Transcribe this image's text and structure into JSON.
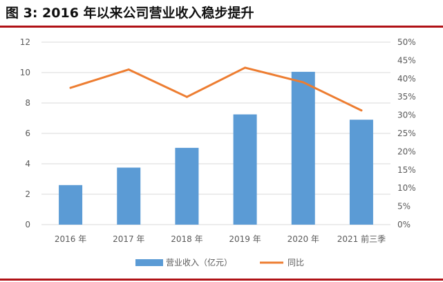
{
  "figure": {
    "title": "图 3: 2016 年以来公司营业收入稳步提升"
  },
  "colors": {
    "accent_rule": "#b01116",
    "bar": "#5b9bd5",
    "line": "#ed7d31",
    "grid": "#d9d9d9",
    "tick_text": "#595959"
  },
  "chart_data": {
    "type": "bar",
    "categories": [
      "2016 年",
      "2017 年",
      "2018 年",
      "2019 年",
      "2020 年",
      "2021 前三季"
    ],
    "series": [
      {
        "name": "营业收入（亿元）",
        "type": "bar",
        "axis": "left",
        "values": [
          2.6,
          3.75,
          5.05,
          7.25,
          10.05,
          6.9
        ]
      },
      {
        "name": "同比",
        "type": "line",
        "axis": "right",
        "unit": "%",
        "values": [
          37.5,
          42.5,
          35.0,
          43.0,
          39.0,
          31.3
        ]
      }
    ],
    "y_left": {
      "ylim": [
        0,
        12
      ],
      "ticks": [
        "0",
        "2",
        "4",
        "6",
        "8",
        "10",
        "12"
      ]
    },
    "y_right": {
      "ylim": [
        0,
        50
      ],
      "ticks": [
        "0%",
        "5%",
        "10%",
        "15%",
        "20%",
        "25%",
        "30%",
        "35%",
        "40%",
        "45%",
        "50%"
      ]
    },
    "grid": true,
    "legend": "bottom"
  }
}
